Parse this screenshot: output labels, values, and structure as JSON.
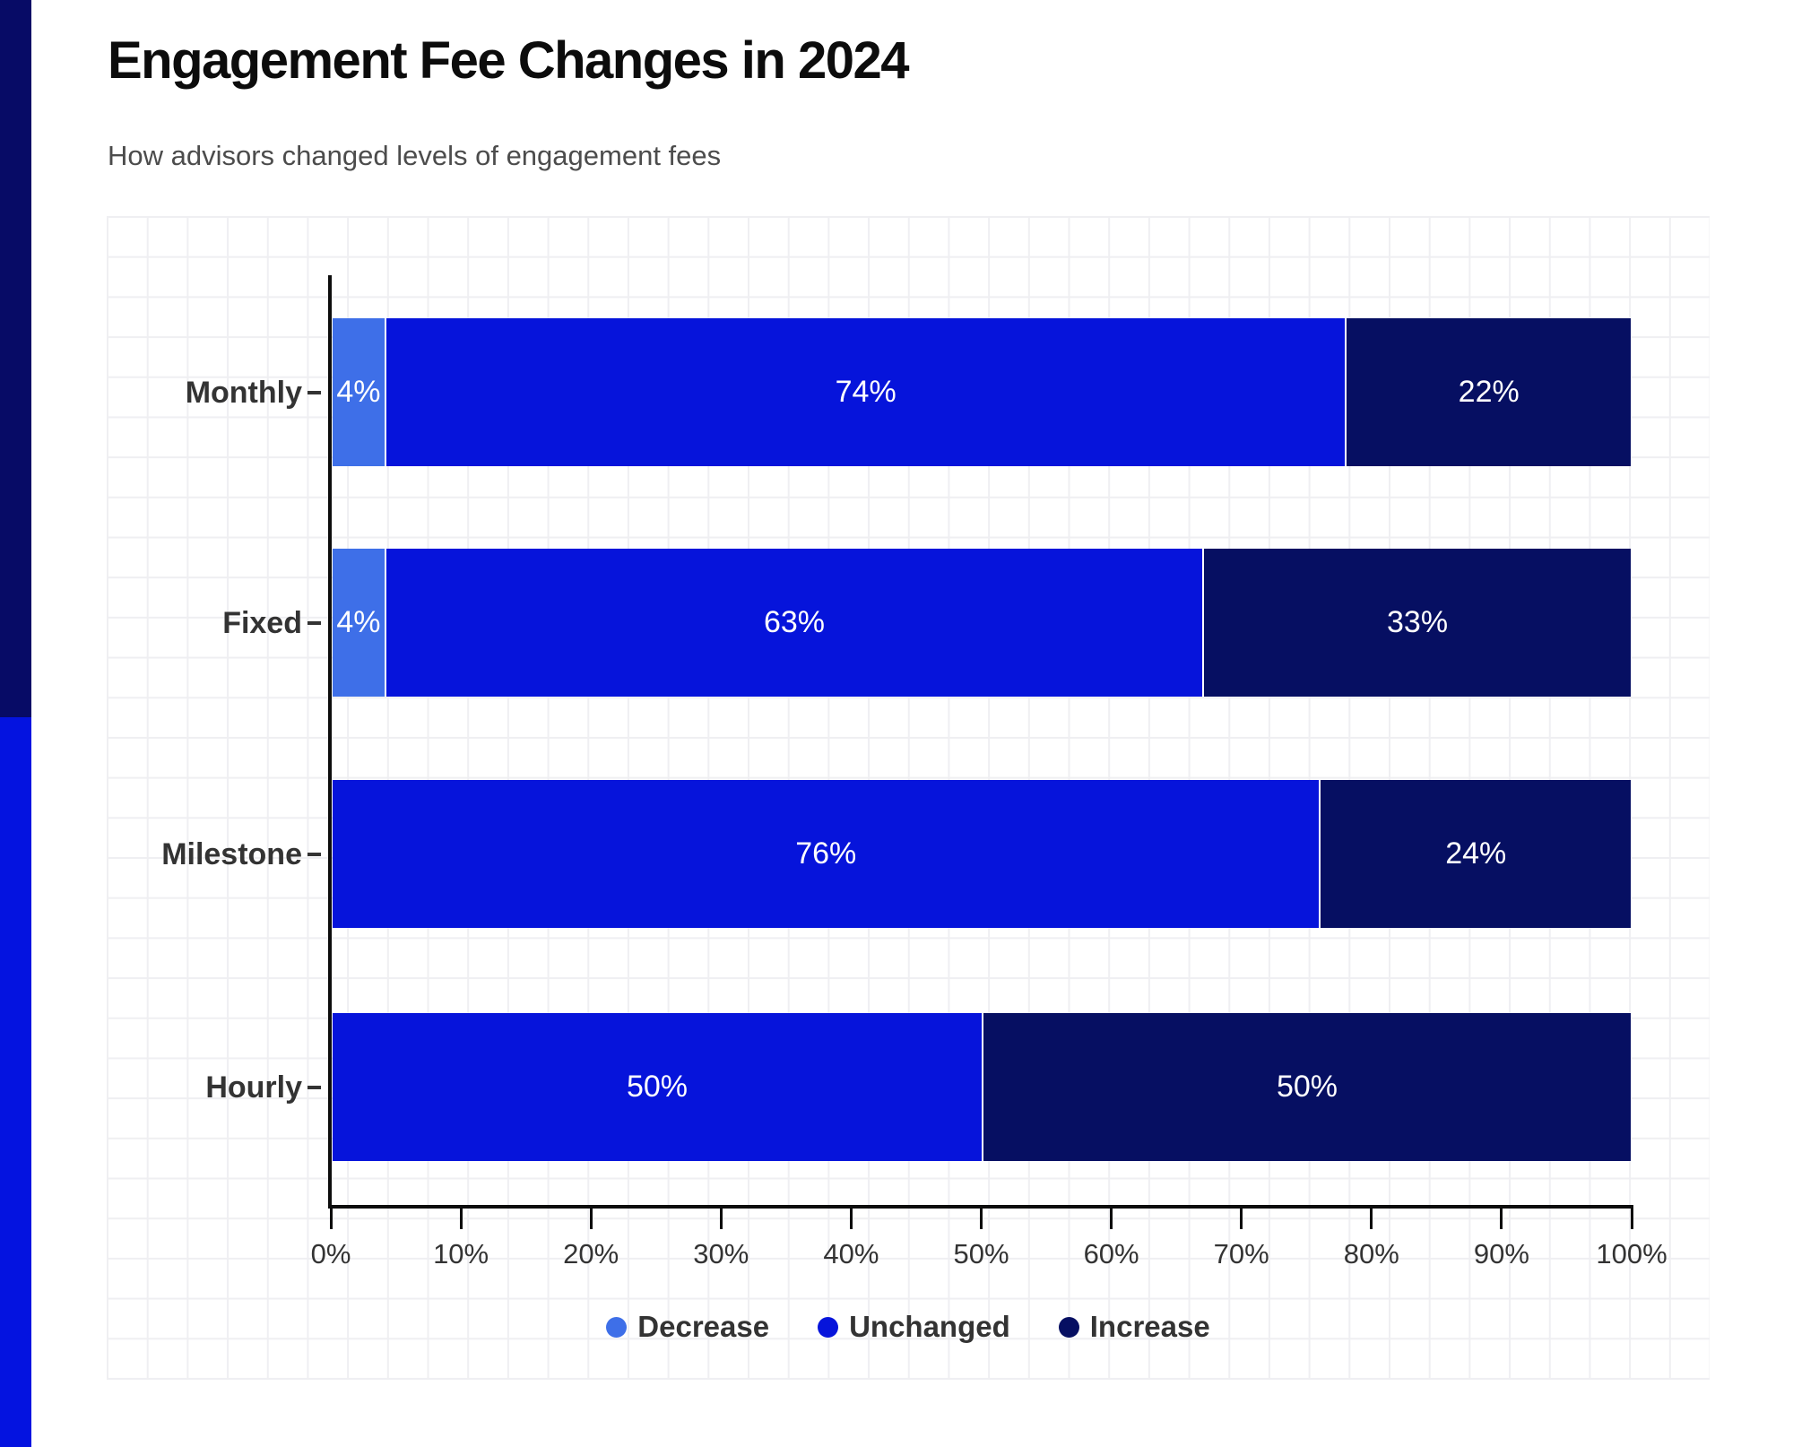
{
  "header": {
    "title": "Engagement Fee Changes in 2024",
    "subtitle": "How advisors changed levels of engagement fees"
  },
  "colors": {
    "decrease": "#3E6FE8",
    "unchanged": "#0614DB",
    "increase": "#060F62",
    "stripe_top": "#070B66",
    "stripe_bottom": "#0413E0",
    "grid_line": "#EFEFF2",
    "axis": "#0D0D0D",
    "label_text": "#333333",
    "tick_text": "#333333",
    "bar_value_text": "#FFFFFF",
    "title_text": "#0C0C0C",
    "subtitle_text": "#4C4C4C",
    "segment_separator": "#FFFFFF"
  },
  "chart_data": {
    "type": "bar",
    "orientation": "horizontal",
    "stacked": true,
    "title": "Engagement Fee Changes in 2024",
    "subtitle": "How advisors changed levels of engagement fees",
    "categories": [
      "Monthly",
      "Fixed",
      "Milestone",
      "Hourly"
    ],
    "series": [
      {
        "name": "Decrease",
        "color": "#3E6FE8",
        "values": [
          4,
          4,
          0,
          0
        ]
      },
      {
        "name": "Unchanged",
        "color": "#0614DB",
        "values": [
          74,
          63,
          76,
          50
        ]
      },
      {
        "name": "Increase",
        "color": "#060F62",
        "values": [
          22,
          33,
          24,
          50
        ]
      }
    ],
    "value_suffix": "%",
    "xlim": [
      0,
      100
    ],
    "x_ticks": [
      "0%",
      "10%",
      "20%",
      "30%",
      "40%",
      "50%",
      "60%",
      "70%",
      "80%",
      "90%",
      "100%"
    ],
    "grid": true,
    "legend_position": "bottom"
  }
}
